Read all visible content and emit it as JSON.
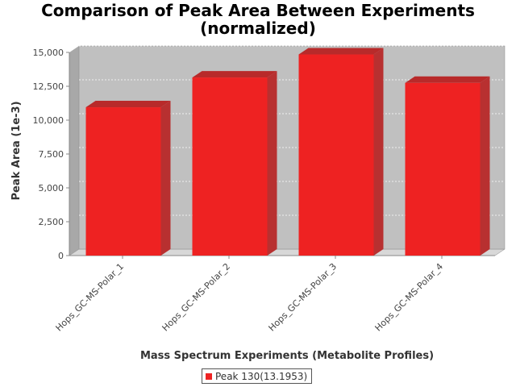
{
  "chart_data": {
    "type": "bar",
    "title_lines": [
      "Comparison of Peak Area Between Experiments",
      "(normalized)"
    ],
    "xlabel": "Mass Spectrum Experiments (Metabolite Profiles)",
    "ylabel": "Peak Area (1e-3)",
    "categories": [
      "Hops_GC-MS-Polar_1",
      "Hops_GC-MS-Polar_2",
      "Hops_GC-MS-Polar_3",
      "Hops_GC-MS-Polar_4"
    ],
    "series": [
      {
        "name": "Peak 130(13.1953)",
        "values": [
          10950,
          13150,
          14850,
          12750
        ],
        "color": "#ee2222"
      }
    ],
    "ylim": [
      0,
      15000
    ],
    "yticks": [
      0,
      2500,
      5000,
      7500,
      10000,
      12500,
      15000
    ],
    "ytick_labels": [
      "0",
      "2,500",
      "5,000",
      "7,500",
      "10,000",
      "12,500",
      "15,000"
    ],
    "grid": true,
    "legend_position": "bottom",
    "style": "3d-bar",
    "plot_background": "#c0c0c0"
  }
}
